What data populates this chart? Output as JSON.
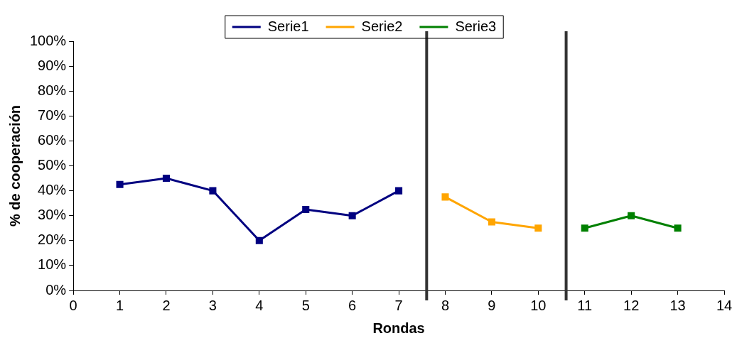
{
  "chart_data": {
    "type": "line",
    "xlabel": "Rondas",
    "ylabel": "% de cooperación",
    "x": [
      1,
      2,
      3,
      4,
      5,
      6,
      7
    ],
    "series": [
      {
        "name": "Serie1",
        "color": "#000080",
        "values": [
          42.5,
          45,
          40,
          20,
          32.5,
          30,
          40
        ]
      },
      {
        "name": "Serie2",
        "color": "#ffa500",
        "x": [
          8,
          9,
          10
        ],
        "values": [
          37.5,
          27.5,
          25
        ]
      },
      {
        "name": "Serie3",
        "color": "#008000",
        "x": [
          11,
          12,
          13
        ],
        "values": [
          25,
          30,
          25
        ]
      }
    ],
    "marker": "square",
    "line_style": "solid",
    "legend": "top",
    "grid": false,
    "xlim": [
      0,
      14
    ],
    "xticks": [
      0,
      1,
      2,
      3,
      4,
      5,
      6,
      7,
      8,
      9,
      10,
      11,
      12,
      13,
      14
    ],
    "ylim": [
      0,
      100
    ],
    "yticks": [
      {
        "value": 0,
        "label": "0%"
      },
      {
        "value": 10,
        "label": "10%"
      },
      {
        "value": 20,
        "label": "20%"
      },
      {
        "value": 30,
        "label": "30%"
      },
      {
        "value": 40,
        "label": "40%"
      },
      {
        "value": 50,
        "label": "50%"
      },
      {
        "value": 60,
        "label": "60%"
      },
      {
        "value": 70,
        "label": "70%"
      },
      {
        "value": 80,
        "label": "80%"
      },
      {
        "value": 90,
        "label": "90%"
      },
      {
        "value": 100,
        "label": "100%"
      }
    ],
    "ref_lines": [
      {
        "axis": "x",
        "value": 7.6,
        "color": "#333333"
      },
      {
        "axis": "x",
        "value": 10.6,
        "color": "#333333"
      }
    ]
  }
}
